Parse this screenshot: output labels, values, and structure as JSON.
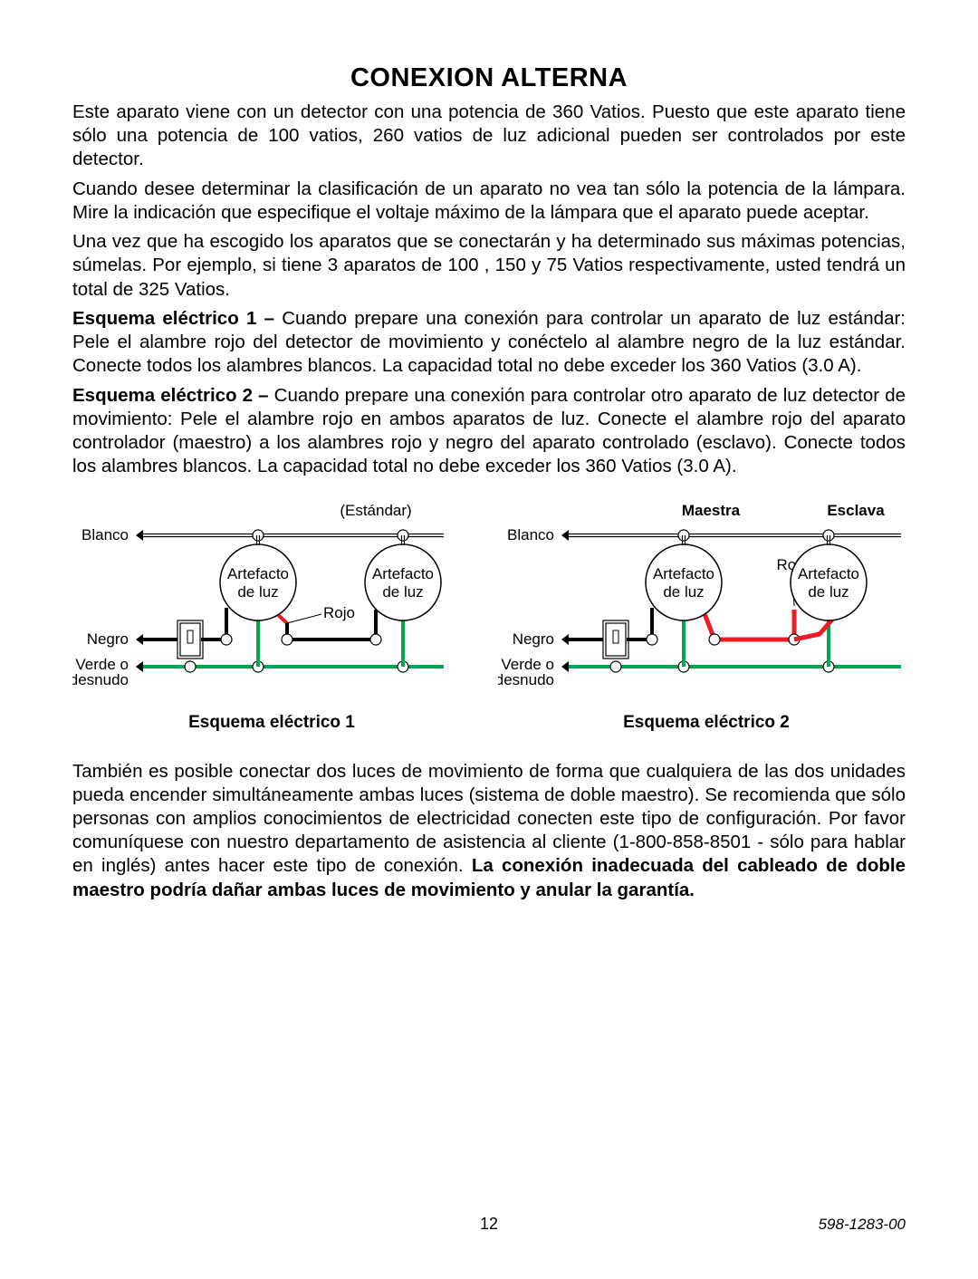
{
  "title": "CONEXION ALTERNA",
  "para1": "Este aparato viene con un detector con una potencia de 360 Vatios. Puesto que este aparato tiene sólo una potencia de 100 vatios, 260 vatios de luz adicional pueden ser controlados por este detector.",
  "para2": "Cuando desee determinar la clasificación de un aparato no vea tan sólo la potencia de la lámpara. Mire la indicación que especifique el voltaje máximo de la lámpara que el aparato puede aceptar.",
  "para3": "Una vez que ha escogido los aparatos que se conectarán y ha determinado sus máximas potencias, súmelas. Por ejemplo, si tiene 3 aparatos de 100 , 150 y 75 Vatios respectivamente, usted tendrá un total de 325 Vatios.",
  "esq1_lead": "Esquema  eléctrico 1 – ",
  "esq1_body": "Cuando prepare una conexión para controlar un aparato de luz estándar: Pele el alambre rojo del detector de movimiento y conéctelo al alambre negro de la luz estándar. Conecte todos los alambres blancos. La capacidad total no debe exceder los 360 Vatios (3.0 A).",
  "esq2_lead": "Esquema  eléctrico 2 – ",
  "esq2_body": "Cuando prepare una conexión para controlar otro aparato de luz detector de movimiento: Pele el alambre rojo en ambos aparatos de luz. Conecte el alambre rojo del aparato controlador (maestro) a los alambres rojo y negro del aparato controlado (esclavo). Conecte todos los alambres blancos. La capacidad total no debe exceder los 360 Vatios (3.0 A).",
  "para_after_lead": "También es posible conectar dos luces de movimiento de forma que cualquiera de las dos unidades pueda encender simultáneamente ambas luces (sistema de doble maestro). Se recomienda que sólo personas con amplios conocimientos de electricidad conecten este tipo de configuración. Por favor comuníquese con nuestro departamento de asistencia al cliente (1-800-858-8501 - sólo para hablar en inglés) antes hacer este tipo de conexión. ",
  "para_after_bold": "La conexión inadecuada del cableado de doble maestro podría dañar ambas luces de movimiento y anular la garantía.",
  "page_number": "12",
  "doc_id": "598-1283-00",
  "diagram": {
    "labels": {
      "blanco": "Blanco",
      "negro": "Negro",
      "verde": "Verde o",
      "desnudo": "desnudo",
      "rojo": "Rojo",
      "artefacto1": "Artefacto",
      "artefacto2": "de luz",
      "estandar": "(Estándar)",
      "maestra": "Maestra",
      "esclava": "Esclava"
    },
    "caption1": "Esquema  eléctrico 1",
    "caption2": "Esquema  eléctrico 2",
    "colors": {
      "green": "#00a651",
      "red": "#ed1c24",
      "black": "#000000",
      "white": "#ffffff",
      "font": "#000000"
    },
    "font_size_label": 17,
    "font_size_header": 17,
    "line_width_thin": 1.2,
    "line_width_wire": 4,
    "circle_r_fixture": 42,
    "circle_r_node": 6,
    "switch_w": 22,
    "switch_h": 36
  }
}
